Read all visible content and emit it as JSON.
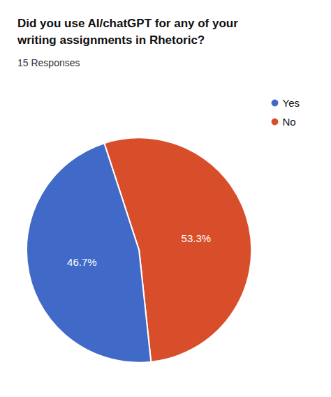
{
  "chart_data": {
    "type": "pie",
    "title": "Did you use AI/chatGPT for any of your\nwriting assignments in Rhetoric?",
    "subtitle": "15 Responses",
    "categories": [
      "No",
      "Yes"
    ],
    "values": [
      53.3,
      46.7
    ],
    "value_labels": [
      "53.3%",
      "46.7%"
    ],
    "colors": [
      "#d94e2a",
      "#4169c8"
    ],
    "data_labels": true,
    "legend": "right"
  }
}
